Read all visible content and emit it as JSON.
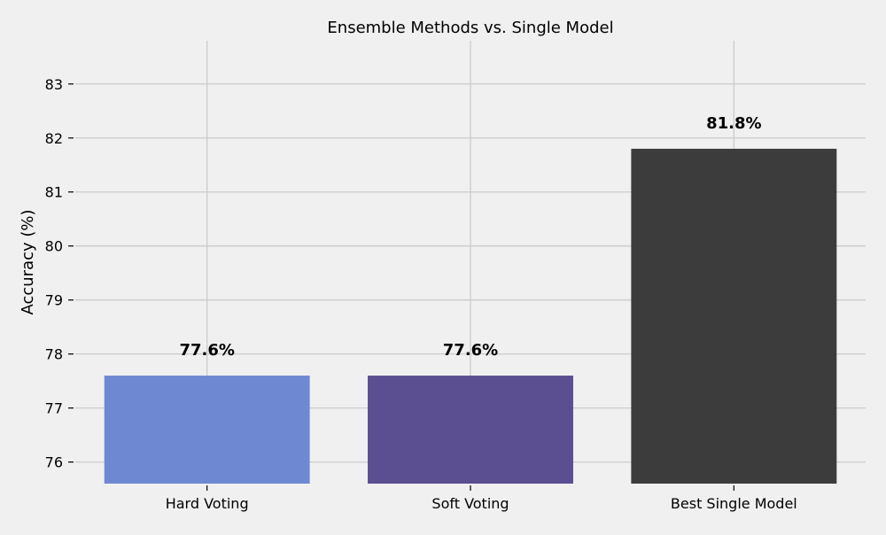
{
  "chart_data": {
    "type": "bar",
    "title": "Ensemble Methods vs. Single Model",
    "xlabel": "",
    "ylabel": "Accuracy (%)",
    "categories": [
      "Hard Voting",
      "Soft Voting",
      "Best Single Model"
    ],
    "values": [
      77.6,
      77.6,
      81.8
    ],
    "data_labels": [
      "77.6%",
      "77.6%",
      "81.8%"
    ],
    "colors": [
      "#6e89d2",
      "#5b4e91",
      "#3c3c3c"
    ],
    "ylim": [
      75.6,
      83.8
    ],
    "yticks": [
      76,
      77,
      78,
      79,
      80,
      81,
      82,
      83
    ],
    "grid": true,
    "legend": "none"
  }
}
